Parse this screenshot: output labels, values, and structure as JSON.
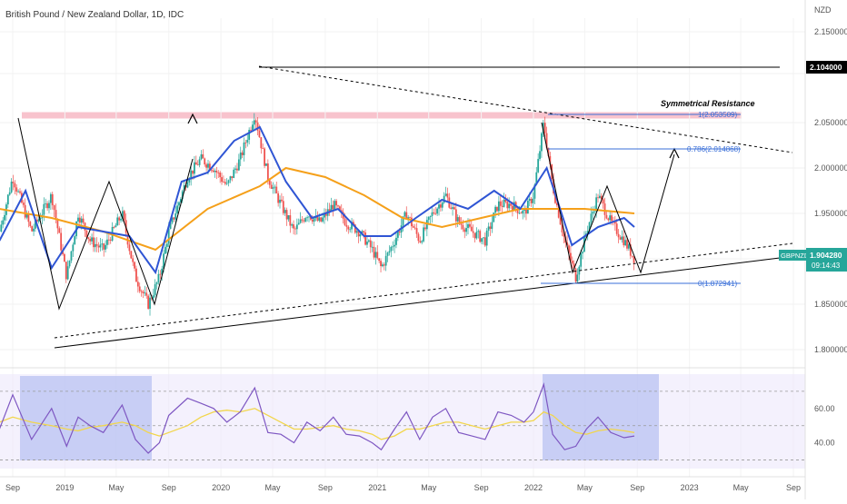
{
  "header": {
    "title": "British Pound / New Zealand Dollar, 1D, IDC"
  },
  "price_axis": {
    "unit": "NZD",
    "ticks": [
      "2.150000",
      "2.104000",
      "2.050000",
      "2.000000",
      "1.950000",
      "1.900000",
      "1.850000",
      "1.800000"
    ],
    "high_label": "2.104000",
    "symbol_label": "GBPNZD",
    "last_price": "1.904280",
    "countdown": "09:14:43"
  },
  "rsi_axis": {
    "ticks": [
      "60.00",
      "40.00"
    ]
  },
  "time_axis": {
    "labels": [
      "Sep",
      "2019",
      "May",
      "Sep",
      "2020",
      "May",
      "Sep",
      "2021",
      "May",
      "Sep",
      "2022",
      "May",
      "Sep",
      "2023",
      "May",
      "Sep"
    ]
  },
  "annotations": {
    "symmetrical_resistance": "Symmetrical Resistance",
    "fib_1": "1(2.053509)",
    "fib_0786": "0.786(2.014868)",
    "fib_0": "0(1.872941)"
  },
  "colors": {
    "up_candle": "#26a69a",
    "down_candle": "#ef5350",
    "ma50": "#2f55d4",
    "ma200": "#f5a01a",
    "rsi": "#7e57c2",
    "rsi_ma": "#f2d64b",
    "fib": "#3a6fd8",
    "resistance_band": "#f7b8c4",
    "rsi_box": "#aab8f0",
    "symbol_tag": "#26a69a"
  },
  "chart_data": {
    "type": "line",
    "title": "British Pound / New Zealand Dollar, 1D, IDC",
    "ylabel": "NZD",
    "ylim": [
      1.78,
      2.165
    ],
    "x_label_dates": [
      "2018-09",
      "2019-01",
      "2019-05",
      "2019-09",
      "2020-01",
      "2020-05",
      "2020-09",
      "2021-01",
      "2021-05",
      "2021-09",
      "2022-01",
      "2022-05",
      "2022-09",
      "2023-01",
      "2023-05",
      "2023-09"
    ],
    "series": [
      {
        "name": "",
        "x": [
          "2018-08-01",
          "2018-09-01",
          "2018-10-15",
          "2018-12-01",
          "2019-01-05",
          "2019-02-01",
          "2019-03-01",
          "2019-04-01",
          "2019-05-15",
          "2019-06-15",
          "2019-07-15",
          "2019-08-10",
          "2019-09-01",
          "2019-10-15",
          "2019-11-15",
          "2019-12-15",
          "2020-01-15",
          "2020-02-15",
          "2020-03-20",
          "2020-04-20",
          "2020-05-20",
          "2020-06-20",
          "2020-07-20",
          "2020-08-20",
          "2020-09-20",
          "2020-10-20",
          "2020-11-20",
          "2020-12-20",
          "2021-01-10",
          "2021-02-10",
          "2021-03-10",
          "2021-04-10",
          "2021-05-10",
          "2021-06-10",
          "2021-07-10",
          "2021-08-10",
          "2021-09-10",
          "2021-10-10",
          "2021-11-10",
          "2021-12-10",
          "2022-01-01",
          "2022-01-25",
          "2022-02-15",
          "2022-03-15",
          "2022-04-10",
          "2022-05-05",
          "2022-06-01",
          "2022-07-01",
          "2022-08-01",
          "2022-08-25"
        ],
        "y": [
          1.93,
          1.99,
          1.93,
          1.97,
          1.88,
          1.95,
          1.92,
          1.91,
          1.95,
          1.88,
          1.85,
          1.88,
          1.93,
          1.99,
          2.01,
          2.0,
          1.98,
          2.01,
          2.06,
          1.99,
          1.96,
          1.93,
          1.95,
          1.94,
          1.96,
          1.94,
          1.93,
          1.91,
          1.89,
          1.92,
          1.95,
          1.92,
          1.95,
          1.97,
          1.94,
          1.93,
          1.92,
          1.96,
          1.96,
          1.95,
          1.97,
          2.05,
          1.98,
          1.92,
          1.88,
          1.93,
          1.97,
          1.94,
          1.92,
          1.9
        ]
      },
      {
        "name": "",
        "x": [
          "2018-08-01",
          "2018-10-01",
          "2018-12-01",
          "2019-02-01",
          "2019-04-01",
          "2019-06-01",
          "2019-08-01",
          "2019-10-01",
          "2019-12-01",
          "2020-02-01",
          "2020-04-01",
          "2020-06-01",
          "2020-08-01",
          "2020-10-01",
          "2020-12-01",
          "2021-02-01",
          "2021-04-01",
          "2021-06-01",
          "2021-08-01",
          "2021-10-01",
          "2021-12-01",
          "2022-02-01",
          "2022-04-01",
          "2022-06-01",
          "2022-08-01",
          "2022-08-25"
        ],
        "y": [
          1.92,
          1.975,
          1.89,
          1.935,
          1.93,
          1.925,
          1.885,
          1.985,
          1.995,
          2.03,
          2.045,
          1.985,
          1.945,
          1.955,
          1.925,
          1.925,
          1.945,
          1.965,
          1.955,
          1.975,
          1.955,
          2.0,
          1.915,
          1.935,
          1.945,
          1.935
        ]
      },
      {
        "name": "",
        "x": [
          "2018-08-01",
          "2018-12-01",
          "2019-04-01",
          "2019-08-01",
          "2019-12-01",
          "2020-04-01",
          "2020-06-01",
          "2020-09-01",
          "2020-12-01",
          "2021-03-01",
          "2021-06-01",
          "2021-09-01",
          "2021-12-01",
          "2022-02-01",
          "2022-05-01",
          "2022-08-25"
        ],
        "y": [
          1.955,
          1.945,
          1.93,
          1.91,
          1.955,
          1.98,
          2.0,
          1.99,
          1.97,
          1.945,
          1.935,
          1.945,
          1.955,
          1.955,
          1.955,
          1.95
        ]
      }
    ],
    "rsi": {
      "ylim": [
        25,
        80
      ],
      "x": [
        "2018-08-01",
        "2018-09-01",
        "2018-10-15",
        "2018-12-01",
        "2019-01-05",
        "2019-02-01",
        "2019-03-01",
        "2019-04-01",
        "2019-05-15",
        "2019-06-15",
        "2019-07-15",
        "2019-08-10",
        "2019-09-01",
        "2019-10-15",
        "2019-11-15",
        "2019-12-15",
        "2020-01-15",
        "2020-02-15",
        "2020-03-20",
        "2020-04-20",
        "2020-05-20",
        "2020-06-20",
        "2020-07-20",
        "2020-08-20",
        "2020-09-20",
        "2020-10-20",
        "2020-11-20",
        "2020-12-20",
        "2021-01-10",
        "2021-02-10",
        "2021-03-10",
        "2021-04-10",
        "2021-05-10",
        "2021-06-10",
        "2021-07-10",
        "2021-08-10",
        "2021-09-10",
        "2021-10-10",
        "2021-11-10",
        "2021-12-10",
        "2022-01-01",
        "2022-01-25",
        "2022-02-15",
        "2022-03-15",
        "2022-04-10",
        "2022-05-05",
        "2022-06-01",
        "2022-07-01",
        "2022-08-01",
        "2022-08-25"
      ],
      "y": [
        48,
        68,
        42,
        60,
        38,
        55,
        50,
        46,
        62,
        42,
        34,
        40,
        56,
        66,
        63,
        60,
        52,
        58,
        72,
        46,
        45,
        40,
        52,
        47,
        55,
        45,
        44,
        40,
        36,
        48,
        58,
        42,
        55,
        60,
        46,
        44,
        42,
        58,
        56,
        52,
        58,
        74,
        45,
        36,
        38,
        48,
        55,
        46,
        43,
        44
      ],
      "ma_y": [
        52,
        55,
        52,
        50,
        48,
        47,
        49,
        50,
        52,
        50,
        46,
        44,
        46,
        50,
        55,
        58,
        59,
        58,
        60,
        56,
        52,
        48,
        48,
        49,
        50,
        48,
        47,
        45,
        42,
        44,
        48,
        48,
        50,
        52,
        52,
        50,
        48,
        50,
        52,
        52,
        53,
        58,
        56,
        50,
        46,
        45,
        47,
        48,
        47,
        46
      ],
      "levels": [
        70,
        50,
        30
      ]
    }
  }
}
